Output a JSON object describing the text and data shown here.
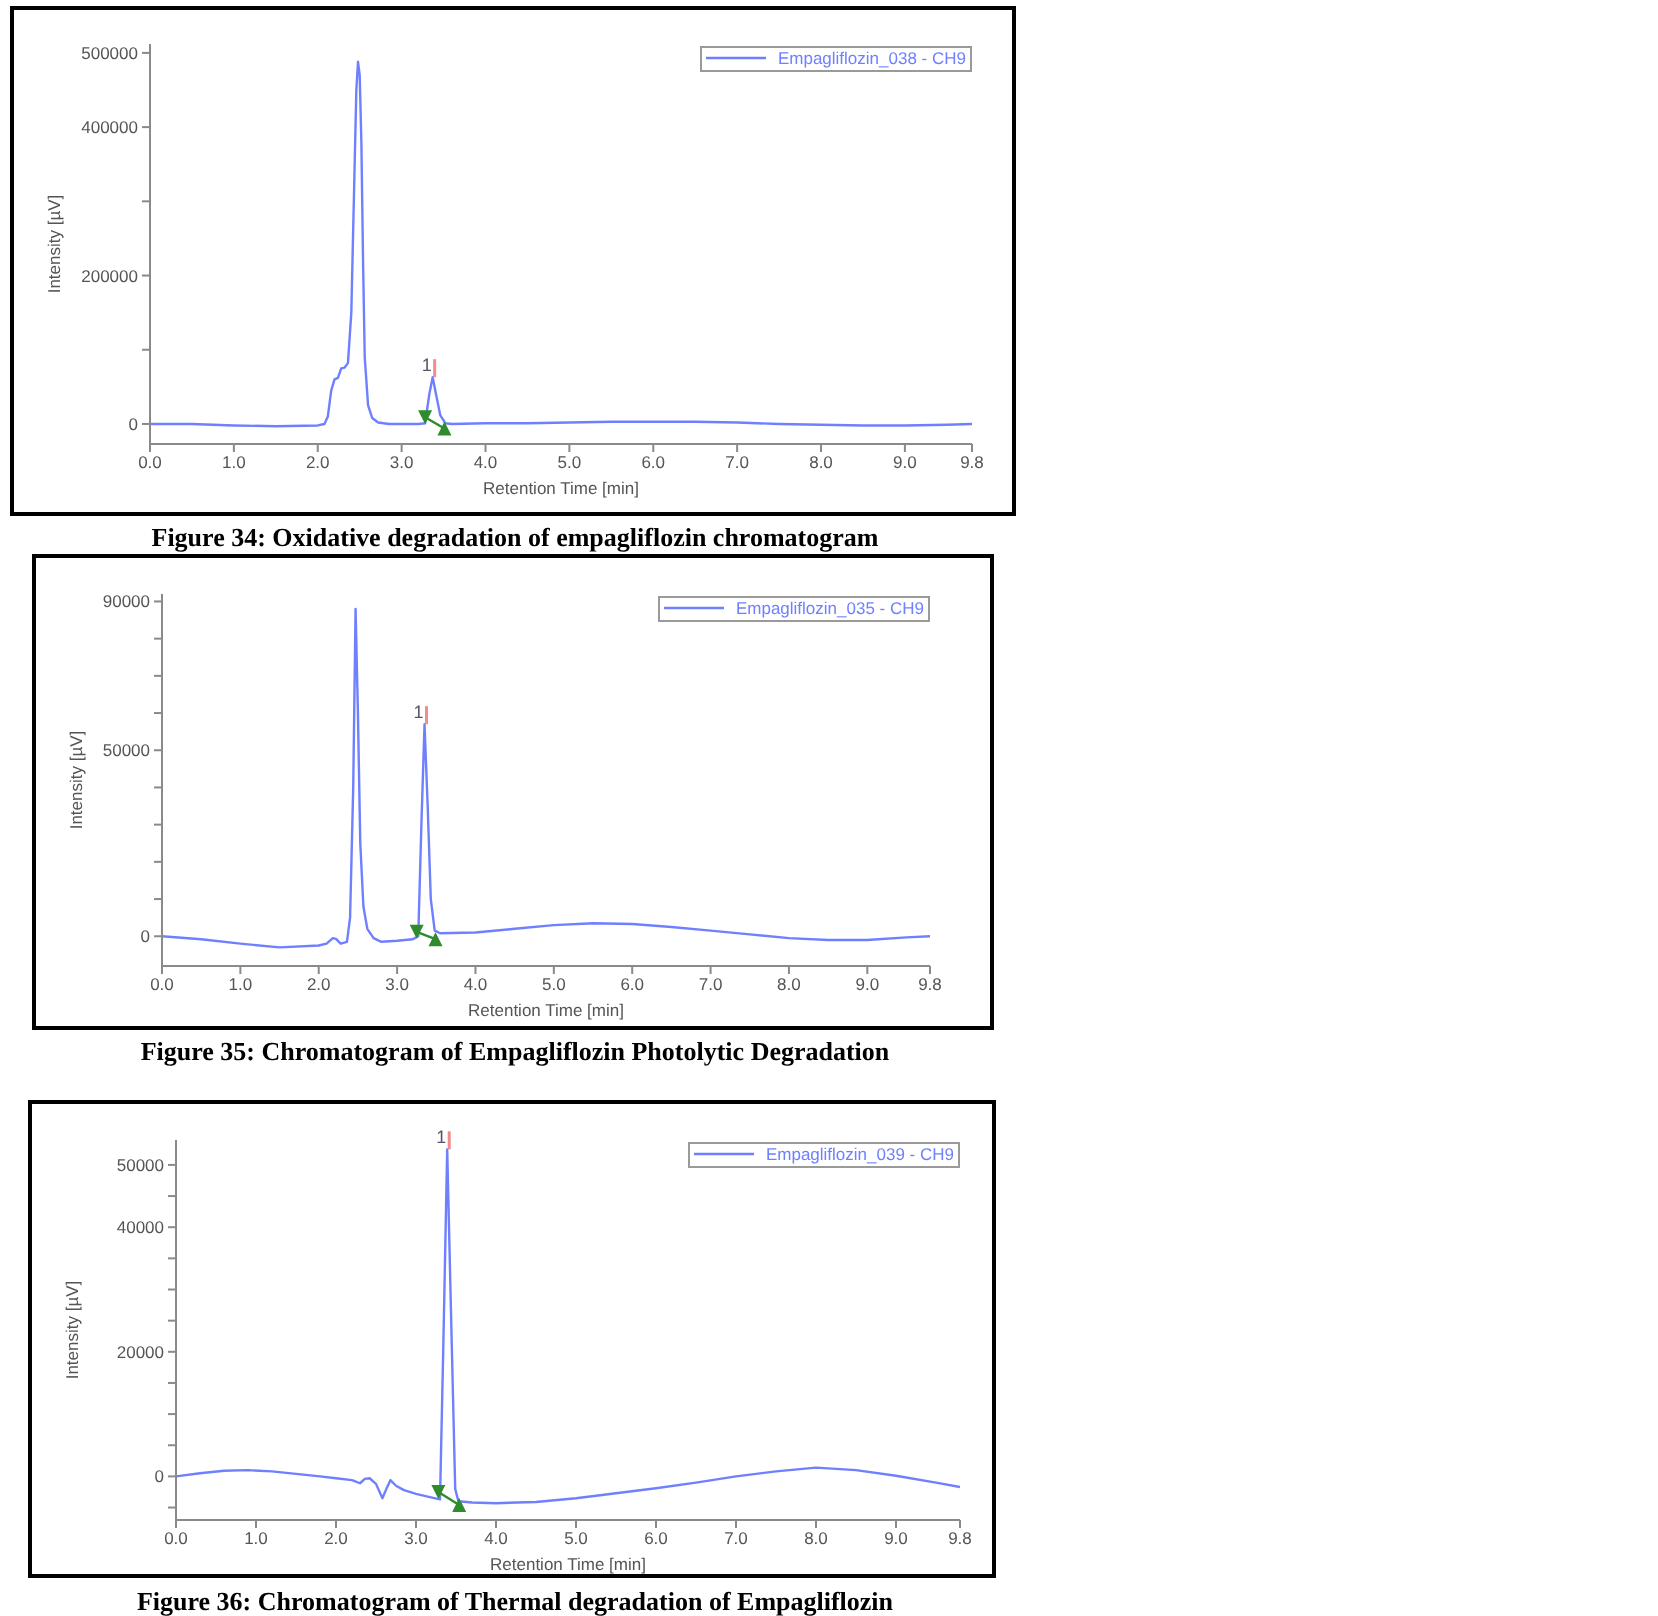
{
  "chart_data": [
    {
      "type": "line",
      "title": "Figure 34: Oxidative degradation of empagliflozin chromatogram",
      "xlabel": "Retention Time [min]",
      "ylabel": "Intensity [µV]",
      "xlim": [
        0,
        9.8
      ],
      "ylim": [
        -27000,
        512000
      ],
      "xticks": [
        {
          "value": 0,
          "label": "0.0"
        },
        {
          "value": 1,
          "label": "1.0"
        },
        {
          "value": 2,
          "label": "2.0"
        },
        {
          "value": 3,
          "label": "3.0"
        },
        {
          "value": 4,
          "label": "4.0"
        },
        {
          "value": 5,
          "label": "5.0"
        },
        {
          "value": 6,
          "label": "6.0"
        },
        {
          "value": 7,
          "label": "7.0"
        },
        {
          "value": 8,
          "label": "8.0"
        },
        {
          "value": 9,
          "label": "9.0"
        },
        {
          "value": 9.8,
          "label": "9.8"
        }
      ],
      "yticks": [
        0,
        {
          "value": 100000,
          "label": null
        },
        200000,
        {
          "value": 300000,
          "label": null
        },
        400000,
        500000
      ],
      "legend": "top right",
      "annotations": [
        {
          "text": "1",
          "x": 3.37,
          "y": 63000
        }
      ],
      "series": [
        {
          "name": "Empagliflozin_038 - CH9",
          "color": "#6f80ff",
          "x": [
            0,
            0.5,
            1,
            1.5,
            2,
            2.08,
            2.12,
            2.16,
            2.2,
            2.24,
            2.28,
            2.32,
            2.36,
            2.4,
            2.43,
            2.46,
            2.48,
            2.5,
            2.52,
            2.54,
            2.56,
            2.6,
            2.65,
            2.72,
            2.85,
            3,
            3.2,
            3.28,
            3.33,
            3.37,
            3.41,
            3.46,
            3.52,
            3.6,
            4,
            4.5,
            5,
            5.5,
            6,
            6.5,
            7,
            7.5,
            8,
            8.5,
            9,
            9.5,
            9.8
          ],
          "values": [
            0,
            0,
            -2000,
            -3000,
            -2000,
            0,
            10000,
            45000,
            60000,
            62000,
            75000,
            76000,
            82000,
            150000,
            300000,
            450000,
            488000,
            470000,
            380000,
            220000,
            90000,
            25000,
            8000,
            2000,
            0,
            0,
            0,
            1000,
            40000,
            63000,
            40000,
            12000,
            1000,
            0,
            1000,
            1000,
            2000,
            3000,
            3000,
            3000,
            2000,
            0,
            -1000,
            -2000,
            -2000,
            -1000,
            0
          ]
        },
        {
          "type": "line",
          "color": "#2e8b2e",
          "marker": "triangle",
          "x": [
            3.28,
            3.51
          ],
          "values": [
            9000,
            -6000
          ]
        }
      ]
    },
    {
      "type": "line",
      "title": "Figure 35: Chromatogram of Empagliflozin Photolytic Degradation",
      "xlabel": "Retention Time [min]",
      "ylabel": "Intensity [µV]",
      "xlim": [
        0,
        9.8
      ],
      "ylim": [
        -8000,
        92000
      ],
      "xticks": [
        {
          "value": 0,
          "label": "0.0"
        },
        {
          "value": 1,
          "label": "1.0"
        },
        {
          "value": 2,
          "label": "2.0"
        },
        {
          "value": 3,
          "label": "3.0"
        },
        {
          "value": 4,
          "label": "4.0"
        },
        {
          "value": 5,
          "label": "5.0"
        },
        {
          "value": 6,
          "label": "6.0"
        },
        {
          "value": 7,
          "label": "7.0"
        },
        {
          "value": 8,
          "label": "8.0"
        },
        {
          "value": 9,
          "label": "9.0"
        },
        {
          "value": 9.8,
          "label": "9.8"
        }
      ],
      "yticks": [
        0,
        {
          "value": 10000,
          "label": null
        },
        {
          "value": 20000,
          "label": null
        },
        {
          "value": 30000,
          "label": null
        },
        {
          "value": 40000,
          "label": null
        },
        50000,
        {
          "value": 60000,
          "label": null
        },
        {
          "value": 70000,
          "label": null
        },
        {
          "value": 80000,
          "label": null
        },
        90000
      ],
      "legend": "top right",
      "annotations": [
        {
          "text": "1",
          "x": 3.35,
          "y": 57000
        }
      ],
      "series": [
        {
          "name": "Empagliflozin_035 - CH9",
          "color": "#6f80ff",
          "x": [
            0,
            0.5,
            1,
            1.5,
            2,
            2.1,
            2.18,
            2.22,
            2.28,
            2.36,
            2.4,
            2.44,
            2.47,
            2.5,
            2.53,
            2.57,
            2.62,
            2.7,
            2.8,
            3,
            3.2,
            3.27,
            3.31,
            3.35,
            3.39,
            3.43,
            3.48,
            3.55,
            4,
            4.5,
            5,
            5.5,
            6,
            6.5,
            7,
            7.5,
            8,
            8.5,
            9,
            9.5,
            9.8
          ],
          "values": [
            0,
            -800,
            -2000,
            -3000,
            -2500,
            -2000,
            -500,
            -700,
            -2000,
            -1500,
            5000,
            40000,
            88000,
            60000,
            25000,
            8000,
            2000,
            -500,
            -1500,
            -1200,
            -800,
            0,
            30000,
            57000,
            35000,
            10000,
            1500,
            800,
            1000,
            2000,
            3000,
            3500,
            3300,
            2500,
            1500,
            500,
            -500,
            -1000,
            -1000,
            -300,
            0
          ]
        },
        {
          "type": "line",
          "color": "#2e8b2e",
          "marker": "triangle",
          "x": [
            3.25,
            3.49
          ],
          "values": [
            1200,
            -800
          ]
        }
      ]
    },
    {
      "type": "line",
      "title": "Figure 36: Chromatogram of Thermal degradation of Empagliflozin",
      "xlabel": "Retention Time [min]",
      "ylabel": "Intensity [µV]",
      "xlim": [
        0,
        9.8
      ],
      "ylim": [
        -7000,
        54000
      ],
      "xticks": [
        {
          "value": 0,
          "label": "0.0"
        },
        {
          "value": 1,
          "label": "1.0"
        },
        {
          "value": 2,
          "label": "2.0"
        },
        {
          "value": 3,
          "label": "3.0"
        },
        {
          "value": 4,
          "label": "4.0"
        },
        {
          "value": 5,
          "label": "5.0"
        },
        {
          "value": 6,
          "label": "6.0"
        },
        {
          "value": 7,
          "label": "7.0"
        },
        {
          "value": 8,
          "label": "8.0"
        },
        {
          "value": 9,
          "label": "9.0"
        },
        {
          "value": 9.8,
          "label": "9.8"
        }
      ],
      "yticks": [
        {
          "value": -5000,
          "label": null
        },
        0,
        {
          "value": 5000,
          "label": null
        },
        {
          "value": 10000,
          "label": null
        },
        {
          "value": 15000,
          "label": null
        },
        20000,
        {
          "value": 25000,
          "label": null
        },
        {
          "value": 30000,
          "label": null
        },
        {
          "value": 35000,
          "label": null
        },
        40000,
        {
          "value": 45000,
          "label": null
        },
        50000
      ],
      "legend": "top right",
      "annotations": [
        {
          "text": "1",
          "x": 3.39,
          "y": 52500
        }
      ],
      "series": [
        {
          "name": "Empagliflozin_039 - CH9",
          "color": "#6f80ff",
          "x": [
            0,
            0.3,
            0.6,
            0.9,
            1.2,
            1.5,
            1.8,
            2,
            2.2,
            2.3,
            2.36,
            2.42,
            2.5,
            2.58,
            2.63,
            2.68,
            2.75,
            2.85,
            3,
            3.2,
            3.3,
            3.34,
            3.39,
            3.44,
            3.49,
            3.53,
            3.7,
            4,
            4.5,
            5,
            5.5,
            6,
            6.5,
            7,
            7.5,
            8,
            8.5,
            9,
            9.5,
            9.8
          ],
          "values": [
            0,
            500,
            900,
            1000,
            800,
            400,
            0,
            -300,
            -600,
            -1100,
            -400,
            -300,
            -1200,
            -3500,
            -2000,
            -600,
            -1500,
            -2200,
            -2800,
            -3400,
            -3700,
            20000,
            52500,
            25000,
            -2000,
            -4000,
            -4200,
            -4300,
            -4100,
            -3500,
            -2700,
            -1900,
            -1000,
            0,
            800,
            1400,
            1000,
            100,
            -1000,
            -1700
          ]
        },
        {
          "type": "line",
          "color": "#2e8b2e",
          "marker": "triangle",
          "x": [
            3.28,
            3.54
          ],
          "values": [
            -2500,
            -4600
          ]
        }
      ]
    }
  ]
}
